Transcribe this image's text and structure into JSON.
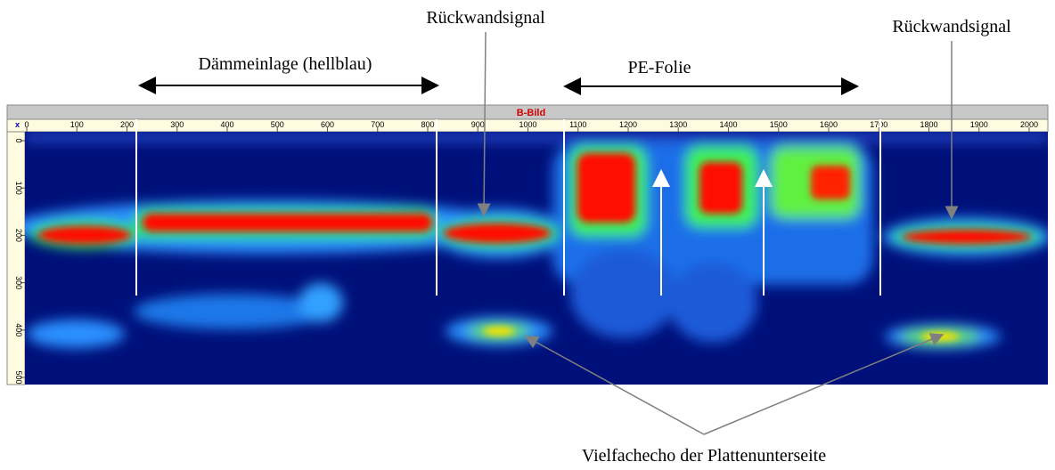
{
  "annotations": {
    "backwall_left": "Rückwandsignal",
    "backwall_right": "Rückwandsignal",
    "insulation": "Dämmeinlage (hellblau)",
    "pe_foil": "PE-Folie",
    "multiple_echo": "Vielfachecho der Plattenunterseite"
  },
  "window": {
    "title": "B-Bild",
    "x_axis_label": "x",
    "x_ticks": [
      0,
      100,
      200,
      300,
      400,
      500,
      600,
      700,
      800,
      900,
      1000,
      1100,
      1200,
      1300,
      1400,
      1500,
      1600,
      1700,
      1800,
      1900,
      2000
    ],
    "y_ticks": [
      0,
      100,
      200,
      300,
      400,
      500
    ]
  }
}
